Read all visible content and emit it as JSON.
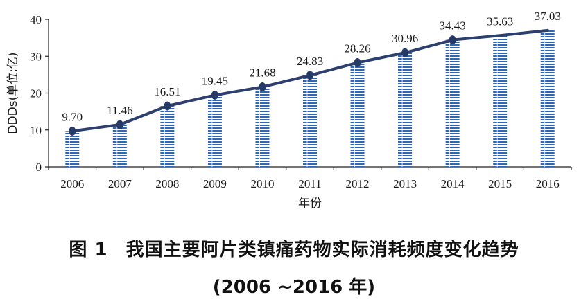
{
  "chart_data": {
    "type": "bar",
    "categories": [
      "2006",
      "2007",
      "2008",
      "2009",
      "2010",
      "2011",
      "2012",
      "2013",
      "2014",
      "2015",
      "2016"
    ],
    "values": [
      9.7,
      11.46,
      16.51,
      19.45,
      21.68,
      24.83,
      28.26,
      30.96,
      34.43,
      35.63,
      37.03
    ],
    "value_labels": [
      "9.70",
      "11.46",
      "16.51",
      "19.45",
      "21.68",
      "24.83",
      "28.26",
      "30.96",
      "34.43",
      "35.63",
      "37.03"
    ],
    "xlabel": "年份",
    "ylabel": "DDDs(单位:亿)",
    "ylim": [
      0,
      40
    ],
    "yticks": [
      0,
      10,
      20,
      30,
      40
    ],
    "ytick_labels": [
      "0",
      "10",
      "20",
      "30",
      "40"
    ],
    "line_overlay": true,
    "line_marker_from": "2006",
    "line_marker_to": "2014",
    "grid": false,
    "colors": {
      "bar_stripe_a": "#2e66b8",
      "bar_stripe_b": "#ffffff",
      "line": "#2c3f6e",
      "marker": "#253a66",
      "axis": "#222222"
    }
  },
  "caption": {
    "figure_number": "图 1",
    "title": "我国主要阿片类镇痛药物实际消耗频度变化趋势",
    "period": "(2006 ~2016 年)"
  }
}
